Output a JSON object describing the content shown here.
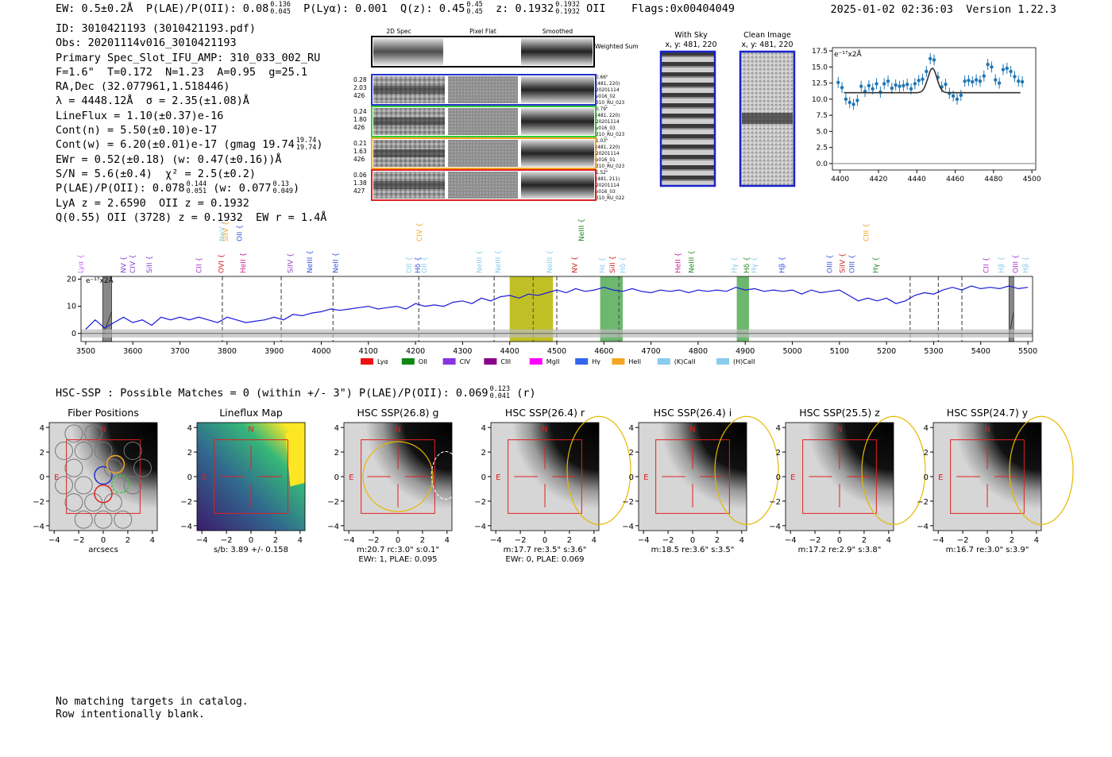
{
  "header": {
    "ew": "EW: 0.5±0.2Å",
    "plae_label": "P(LAE)/P(OII): 0.08",
    "plae_hi": "0.136",
    "plae_lo": "0.045",
    "plya": "P(Lyα): 0.001",
    "qz_label": "Q(z): 0.45",
    "qz_hi": "0.45",
    "qz_lo": "0.45",
    "z_label": "z: 0.1932",
    "z_hi": "0.1932",
    "z_lo": "0.1932",
    "z_line": "OII",
    "flags": "Flags:0x00404049",
    "timestamp": "2025-01-02 02:36:03",
    "version": "Version 1.22.3"
  },
  "info": {
    "id": "ID: 3010421193 (3010421193.pdf)",
    "obs": "Obs: 20201114v016_3010421193",
    "primary": "Primary Spec_Slot_IFU_AMP: 310_033_002_RU",
    "params": "F=1.6\"  T=0.172  N=1.23  A=0.95  g=25.1",
    "radec": "RA,Dec (32.077961,1.518446)",
    "lambda": "λ = 4448.12Å  σ = 2.35(±1.08)Å",
    "lineflux": "LineFlux = 1.10(±0.37)e-16",
    "contn": "Cont(n) = 5.50(±0.10)e-17",
    "contw": "Cont(w) = 6.20(±0.01)e-17 (gmag 19.74",
    "contw_hi": "19.74",
    "contw_lo": "19.74",
    "ewr": "EWr = 0.52(±0.18) (w: 0.47(±0.16))Å",
    "sn": "S/N = 5.6(±0.4)  χ² = 2.5(±0.2)",
    "plae": "P(LAE)/P(OII): 0.078",
    "plae_hi": "0.144",
    "plae_lo": "0.051",
    "plae_w": "(w: 0.077",
    "plae_w_hi": "0.13",
    "plae_w_lo": "0.049",
    "lya_z": "LyA z = 2.6590  OII z = 0.1932",
    "q_oii": "Q(0.55) OII (3728) z = 0.1932  EW r = 1.4Å"
  },
  "cutouts": {
    "columns": [
      "2D Spec",
      "Pixel Flat",
      "Smoothed"
    ],
    "weighted_label": "Weighted\nSum",
    "rows": [
      {
        "left": [
          "0.28",
          "2.03",
          "426"
        ],
        "right": [
          "0.66\"",
          "(481, 220)",
          "20201114",
          "v016_02",
          "310_RU_023"
        ],
        "color": "#2233cc"
      },
      {
        "left": [
          "0.24",
          "1.80",
          "426"
        ],
        "right": [
          "0.79\"",
          "(481, 220)",
          "20201114",
          "v016_03",
          "310_RU_023"
        ],
        "color": "#33cc33"
      },
      {
        "left": [
          "0.21",
          "1.63",
          "426"
        ],
        "right": [
          "1.03\"",
          "(481, 220)",
          "20201114",
          "v016_01",
          "310_RU_023"
        ],
        "color": "#f5a623"
      },
      {
        "left": [
          "0.06",
          "1.38",
          "427"
        ],
        "right": [
          "1.52\"",
          "(481, 211)",
          "20201114",
          "v016_03",
          "310_RU_022"
        ],
        "color": "#dd2222"
      }
    ],
    "with_sky_title": "With Sky",
    "with_sky_coords": "x, y: 481, 220",
    "clean_title": "Clean Image",
    "clean_coords": "x, y: 481, 220"
  },
  "zoom_chart": {
    "type": "scatter",
    "ylabel": "e⁻¹⁷x2Å",
    "xlim": [
      4396,
      4502
    ],
    "ylim": [
      -1,
      18
    ],
    "xticks": [
      4400,
      4420,
      4440,
      4460,
      4480,
      4500
    ],
    "yticks": [
      0.0,
      2.5,
      5.0,
      7.5,
      10.0,
      12.5,
      15.0,
      17.5
    ],
    "points": [
      [
        4399,
        12.6
      ],
      [
        4401,
        11.8
      ],
      [
        4403,
        10.0
      ],
      [
        4405,
        9.5
      ],
      [
        4407,
        9.2
      ],
      [
        4409,
        9.8
      ],
      [
        4411,
        12.0
      ],
      [
        4413,
        11.2
      ],
      [
        4415,
        12.1
      ],
      [
        4417,
        11.6
      ],
      [
        4419,
        12.4
      ],
      [
        4421,
        11.1
      ],
      [
        4423,
        12.4
      ],
      [
        4425,
        12.8
      ],
      [
        4427,
        11.7
      ],
      [
        4429,
        12.2
      ],
      [
        4431,
        12.0
      ],
      [
        4433,
        12.1
      ],
      [
        4435,
        12.3
      ],
      [
        4437,
        11.6
      ],
      [
        4439,
        12.4
      ],
      [
        4441,
        12.9
      ],
      [
        4443,
        13.1
      ],
      [
        4445,
        14.3
      ],
      [
        4447,
        16.3
      ],
      [
        4449,
        16.1
      ],
      [
        4451,
        13.4
      ],
      [
        4453,
        11.9
      ],
      [
        4455,
        12.3
      ],
      [
        4457,
        10.9
      ],
      [
        4459,
        10.5
      ],
      [
        4461,
        10.0
      ],
      [
        4463,
        10.6
      ],
      [
        4465,
        12.8
      ],
      [
        4467,
        12.9
      ],
      [
        4469,
        12.7
      ],
      [
        4471,
        13.0
      ],
      [
        4473,
        12.8
      ],
      [
        4475,
        13.6
      ],
      [
        4477,
        15.4
      ],
      [
        4479,
        15.0
      ],
      [
        4481,
        13.0
      ],
      [
        4483,
        12.5
      ],
      [
        4485,
        14.6
      ],
      [
        4487,
        14.8
      ],
      [
        4489,
        14.3
      ],
      [
        4491,
        13.5
      ],
      [
        4493,
        12.8
      ],
      [
        4495,
        12.7
      ]
    ],
    "fit_continuum": 11.0,
    "fit_center": 4448.12,
    "fit_sigma": 2.35,
    "fit_peak": 14.8,
    "fit_range": [
      4402,
      4494
    ]
  },
  "chart_data": {
    "type": "line",
    "title": "",
    "ylabel": "e⁻¹⁷x2Å",
    "xlim": [
      3490,
      5510
    ],
    "ylim": [
      -3,
      21
    ],
    "xticks": [
      3500,
      3600,
      3700,
      3800,
      3900,
      4000,
      4100,
      4200,
      4300,
      4400,
      4500,
      4600,
      4700,
      4800,
      4900,
      5000,
      5100,
      5200,
      5300,
      5400,
      5500
    ],
    "yticks": [
      0,
      10,
      20
    ],
    "spectrum": [
      [
        3500,
        1.5
      ],
      [
        3520,
        5
      ],
      [
        3540,
        2
      ],
      [
        3560,
        4
      ],
      [
        3580,
        6
      ],
      [
        3600,
        4
      ],
      [
        3620,
        5
      ],
      [
        3640,
        3
      ],
      [
        3660,
        6
      ],
      [
        3680,
        5
      ],
      [
        3700,
        6
      ],
      [
        3720,
        5
      ],
      [
        3740,
        6
      ],
      [
        3760,
        5
      ],
      [
        3780,
        4
      ],
      [
        3800,
        6
      ],
      [
        3820,
        5
      ],
      [
        3840,
        4
      ],
      [
        3860,
        4.5
      ],
      [
        3880,
        5
      ],
      [
        3900,
        6
      ],
      [
        3920,
        5
      ],
      [
        3940,
        7
      ],
      [
        3960,
        6.5
      ],
      [
        3980,
        7.5
      ],
      [
        4000,
        8
      ],
      [
        4020,
        9
      ],
      [
        4040,
        8.5
      ],
      [
        4060,
        9
      ],
      [
        4080,
        9.5
      ],
      [
        4100,
        10
      ],
      [
        4120,
        9
      ],
      [
        4140,
        9.5
      ],
      [
        4160,
        10
      ],
      [
        4180,
        9
      ],
      [
        4200,
        11
      ],
      [
        4220,
        10
      ],
      [
        4240,
        10.5
      ],
      [
        4260,
        10
      ],
      [
        4280,
        11.5
      ],
      [
        4300,
        12
      ],
      [
        4320,
        11
      ],
      [
        4340,
        13
      ],
      [
        4360,
        12
      ],
      [
        4380,
        13.5
      ],
      [
        4400,
        14
      ],
      [
        4420,
        13
      ],
      [
        4440,
        14.5
      ],
      [
        4460,
        14
      ],
      [
        4480,
        15
      ],
      [
        4500,
        16
      ],
      [
        4520,
        15
      ],
      [
        4540,
        16.5
      ],
      [
        4560,
        15.5
      ],
      [
        4580,
        16
      ],
      [
        4600,
        17
      ],
      [
        4620,
        16
      ],
      [
        4640,
        15.5
      ],
      [
        4660,
        16.5
      ],
      [
        4680,
        15.5
      ],
      [
        4700,
        15
      ],
      [
        4720,
        16
      ],
      [
        4740,
        15.5
      ],
      [
        4760,
        16
      ],
      [
        4780,
        15
      ],
      [
        4800,
        16
      ],
      [
        4820,
        15.5
      ],
      [
        4840,
        16
      ],
      [
        4860,
        15.5
      ],
      [
        4880,
        17
      ],
      [
        4900,
        16
      ],
      [
        4920,
        16.5
      ],
      [
        4940,
        15.5
      ],
      [
        4960,
        16
      ],
      [
        4980,
        15.5
      ],
      [
        5000,
        16
      ],
      [
        5020,
        14.5
      ],
      [
        5040,
        16
      ],
      [
        5060,
        15
      ],
      [
        5080,
        15.5
      ],
      [
        5100,
        16
      ],
      [
        5120,
        14
      ],
      [
        5140,
        12
      ],
      [
        5160,
        13
      ],
      [
        5180,
        12
      ],
      [
        5200,
        13
      ],
      [
        5220,
        11
      ],
      [
        5240,
        12
      ],
      [
        5260,
        14
      ],
      [
        5280,
        15
      ],
      [
        5300,
        14.5
      ],
      [
        5320,
        16
      ],
      [
        5340,
        17
      ],
      [
        5360,
        16
      ],
      [
        5380,
        17.5
      ],
      [
        5400,
        16.5
      ],
      [
        5420,
        17
      ],
      [
        5440,
        16.5
      ],
      [
        5460,
        17.5
      ],
      [
        5480,
        16.5
      ],
      [
        5500,
        17
      ]
    ],
    "bands": [
      {
        "x0": 4400,
        "x1": 4492,
        "color": "#b5b500"
      },
      {
        "x0": 4592,
        "x1": 4640,
        "color": "#55aa55"
      },
      {
        "x0": 4882,
        "x1": 4908,
        "color": "#55aa55"
      }
    ],
    "hatched": [
      {
        "x0": 3536,
        "x1": 3555
      },
      {
        "x0": 5460,
        "x1": 5470
      }
    ],
    "dashed": [
      3790,
      3915,
      4025,
      4207,
      4367,
      4450,
      4500,
      4632,
      5250,
      5310,
      5360
    ],
    "lines": [
      {
        "name": "Lyα",
        "x": 3489,
        "row": 1,
        "color": "#cc66ff"
      },
      {
        "name": "NV",
        "x": 3580,
        "row": 1,
        "color": "#8844cc"
      },
      {
        "name": "CIV",
        "x": 3600,
        "row": 1,
        "color": "#8844cc"
      },
      {
        "name": "SiII",
        "x": 3635,
        "row": 1,
        "color": "#8844cc"
      },
      {
        "name": "CII",
        "x": 3740,
        "row": 1,
        "color": "#aa33cc"
      },
      {
        "name": "OVI",
        "x": 3788,
        "row": 1,
        "color": "#cc2222"
      },
      {
        "name": "HeII",
        "x": 3834,
        "row": 1,
        "color": "#cc2299"
      },
      {
        "name": "SiIV",
        "x": 3934,
        "row": 1,
        "color": "#8844cc"
      },
      {
        "name": "NeIII",
        "x": 3976,
        "row": 1,
        "color": "#3355dd"
      },
      {
        "name": "NeII",
        "x": 4030,
        "row": 1,
        "color": "#3355dd"
      },
      {
        "name": "OII",
        "x": 4186,
        "row": 1,
        "color": "#88ccee"
      },
      {
        "name": "Hδ",
        "x": 4205,
        "row": 1,
        "color": "#3355dd"
      },
      {
        "name": "OII",
        "x": 4218,
        "row": 1,
        "color": "#88ccee"
      },
      {
        "name": "NeIII",
        "x": 4336,
        "row": 1,
        "color": "#88ccee"
      },
      {
        "name": "NeIII",
        "x": 4375,
        "row": 1,
        "color": "#88ccee"
      },
      {
        "name": "NeIII",
        "x": 4485,
        "row": 1,
        "color": "#88ccee"
      },
      {
        "name": "NV",
        "x": 4538,
        "row": 1,
        "color": "#cc2222"
      },
      {
        "name": "Hε",
        "x": 4596,
        "row": 1,
        "color": "#88ccee"
      },
      {
        "name": "SiII",
        "x": 4618,
        "row": 1,
        "color": "#cc2222"
      },
      {
        "name": "Hδ",
        "x": 4640,
        "row": 1,
        "color": "#88ccee"
      },
      {
        "name": "HeII",
        "x": 4757,
        "row": 1,
        "color": "#cc2299"
      },
      {
        "name": "NeIII",
        "x": 4786,
        "row": 1,
        "color": "#228822"
      },
      {
        "name": "Hγ",
        "x": 4877,
        "row": 1,
        "color": "#88ccee"
      },
      {
        "name": "Hδ",
        "x": 4903,
        "row": 1,
        "color": "#228822"
      },
      {
        "name": "Hγ",
        "x": 4919,
        "row": 1,
        "color": "#88ccee"
      },
      {
        "name": "Hβ",
        "x": 4978,
        "row": 1,
        "color": "#3355dd"
      },
      {
        "name": "OIII",
        "x": 5079,
        "row": 1,
        "color": "#3355dd"
      },
      {
        "name": "SiIV",
        "x": 5106,
        "row": 1,
        "color": "#cc2222"
      },
      {
        "name": "OIII",
        "x": 5126,
        "row": 1,
        "color": "#3355dd"
      },
      {
        "name": "Hγ",
        "x": 5177,
        "row": 1,
        "color": "#228822"
      },
      {
        "name": "CII",
        "x": 5411,
        "row": 1,
        "color": "#aa33cc"
      },
      {
        "name": "Hβ",
        "x": 5443,
        "row": 1,
        "color": "#88ccee"
      },
      {
        "name": "OIII",
        "x": 5474,
        "row": 1,
        "color": "#aa33cc"
      },
      {
        "name": "Hβ",
        "x": 5495,
        "row": 1,
        "color": "#88ccee"
      },
      {
        "name": "NeV",
        "x": 3789,
        "row": 0,
        "color": "#88ccee"
      },
      {
        "name": "SiIV",
        "x": 3797,
        "row": 0,
        "color": "#f5a623"
      },
      {
        "name": "OII",
        "x": 3826,
        "row": 0,
        "color": "#3355dd"
      },
      {
        "name": "CIV",
        "x": 4208,
        "row": 0,
        "color": "#f5a623"
      },
      {
        "name": "NeIII",
        "x": 4552,
        "row": 0,
        "color": "#228822"
      },
      {
        "name": "CIII",
        "x": 5157,
        "row": 0,
        "color": "#f5a623"
      }
    ],
    "legend": [
      {
        "name": "Lyα",
        "color": "#ee1111"
      },
      {
        "name": "OII",
        "color": "#118811"
      },
      {
        "name": "CIV",
        "color": "#8833dd"
      },
      {
        "name": "CIII",
        "color": "#880088"
      },
      {
        "name": "MgII",
        "color": "#ff00ff"
      },
      {
        "name": "Hγ",
        "color": "#3366ee"
      },
      {
        "name": "HeII",
        "color": "#f5a623"
      },
      {
        "name": "(K)CaII",
        "color": "#88ccee"
      },
      {
        "name": "(H)CaII",
        "color": "#88ccee"
      }
    ]
  },
  "hsc": {
    "header": "HSC-SSP : Possible Matches = 0 (within +/- 3\")  P(LAE)/P(OII): 0.069",
    "hsc_hi": "0.123",
    "hsc_lo": "0.041",
    "hsc_band": "(r)",
    "panels": [
      {
        "title": "Fiber Positions",
        "captions": [
          "arcsecs"
        ],
        "kind": "fiber"
      },
      {
        "title": "Lineflux Map",
        "captions": [
          "s/b: 3.89 +/- 0.158"
        ],
        "kind": "lineflux"
      },
      {
        "title": "HSC SSP(26.8) g",
        "captions": [
          "m:20.7 rc:3.0\"  s:0.1\"",
          "EWr: 1, PLAE: 0.095"
        ],
        "kind": "g"
      },
      {
        "title": "HSC SSP(26.4) r",
        "captions": [
          "m:17.7  re:3.5\"  s:3.6\"",
          "EWr: 0, PLAE: 0.069"
        ],
        "kind": "r"
      },
      {
        "title": "HSC SSP(26.4) i",
        "captions": [
          "m:18.5  re:3.6\"  s:3.5\""
        ],
        "kind": "i"
      },
      {
        "title": "HSC SSP(25.5) z",
        "captions": [
          "m:17.2  re:2.9\"  s:3.8\""
        ],
        "kind": "z"
      },
      {
        "title": "HSC SSP(24.7) y",
        "captions": [
          "m:16.7  re:3.0\"  s:3.9\""
        ],
        "kind": "y"
      }
    ],
    "ticks": [
      -4,
      -2,
      0,
      2,
      4
    ],
    "north": "N",
    "east": "E"
  },
  "footer": {
    "line1": "No matching targets in catalog.",
    "line2": "Row intentionally blank."
  }
}
